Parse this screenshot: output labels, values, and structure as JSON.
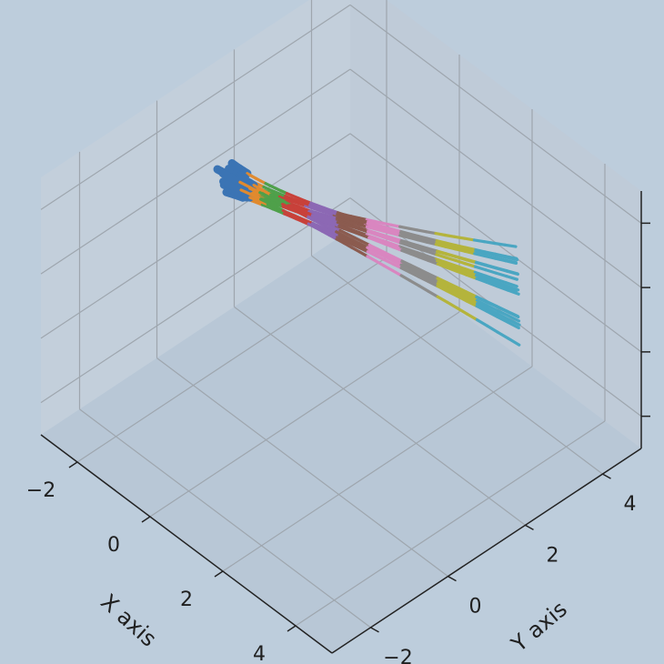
{
  "chart_data": {
    "type": "line3d",
    "title": "",
    "xlabel": "X axis",
    "ylabel": "Y axis",
    "zlabel": "",
    "xlim": [
      -3,
      5
    ],
    "ylim": [
      -3,
      5
    ],
    "zlim": [
      -2,
      2
    ],
    "x_ticks": [
      -2,
      0,
      2,
      4
    ],
    "y_ticks": [
      -2,
      0,
      2,
      4
    ],
    "z_ticks": [
      -1.5,
      -0.5,
      0.5,
      1.5
    ],
    "x_tick_labels": [
      "−2",
      "0",
      "2",
      "4"
    ],
    "y_tick_labels": [
      "−2",
      "0",
      "2",
      "4"
    ],
    "grid": true,
    "legend": "none",
    "view": {
      "elevation_deg": 30,
      "azimuth_deg": -135
    },
    "pane_color": "#c6d2dd",
    "grid_color": "#9ea6ae",
    "focus_point": [
      -0.3,
      1.2,
      0.9
    ],
    "bundle": {
      "description_free": true,
      "strand_count": 18,
      "steps": 40,
      "colors": [
        "#3b74b4",
        "#e08a2f",
        "#4fa04a",
        "#c8413a",
        "#8c68b4",
        "#8b5b4f",
        "#d986c0",
        "#8c8c8c",
        "#b4b43c",
        "#4aa6c2"
      ],
      "root_start": [
        -1.3,
        0.2,
        1.4
      ],
      "root_end_spread": 0.4,
      "fan_end_center": [
        3.3,
        3.4,
        0.3
      ],
      "fan_end_spread": [
        1.8,
        1.6,
        0.9
      ]
    }
  }
}
